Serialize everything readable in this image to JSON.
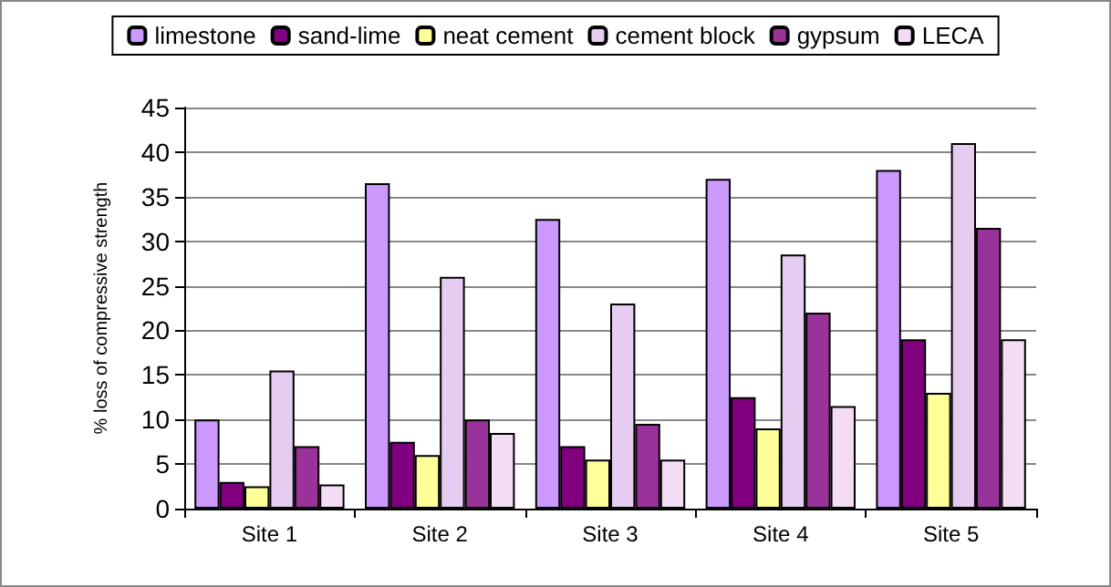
{
  "chart_data": {
    "type": "bar",
    "ylabel": "% loss of compressive strength",
    "categories": [
      "Site 1",
      "Site 2",
      "Site 3",
      "Site 4",
      "Site 5"
    ],
    "series": [
      {
        "name": "limestone",
        "color": "#cc99ff",
        "values": [
          10,
          36.5,
          32.5,
          37,
          38
        ]
      },
      {
        "name": "sand-lime",
        "color": "#800080",
        "values": [
          3,
          7.5,
          7,
          12.5,
          19
        ]
      },
      {
        "name": "neat cement",
        "color": "#ffff99",
        "values": [
          2.5,
          6,
          5.5,
          9,
          13
        ]
      },
      {
        "name": "cement block",
        "color": "#e6ccf0",
        "values": [
          15.5,
          26,
          23,
          28.5,
          41
        ]
      },
      {
        "name": "gypsum",
        "color": "#993399",
        "values": [
          7,
          10,
          9.5,
          22,
          31.5
        ]
      },
      {
        "name": "LECA",
        "color": "#f5dcf5",
        "values": [
          2.7,
          8.5,
          5.5,
          11.5,
          19
        ]
      }
    ],
    "ylim": [
      0,
      45
    ],
    "yticks": [
      0,
      5,
      10,
      15,
      20,
      25,
      30,
      35,
      40,
      45
    ],
    "grid": "y",
    "legend": "top"
  }
}
